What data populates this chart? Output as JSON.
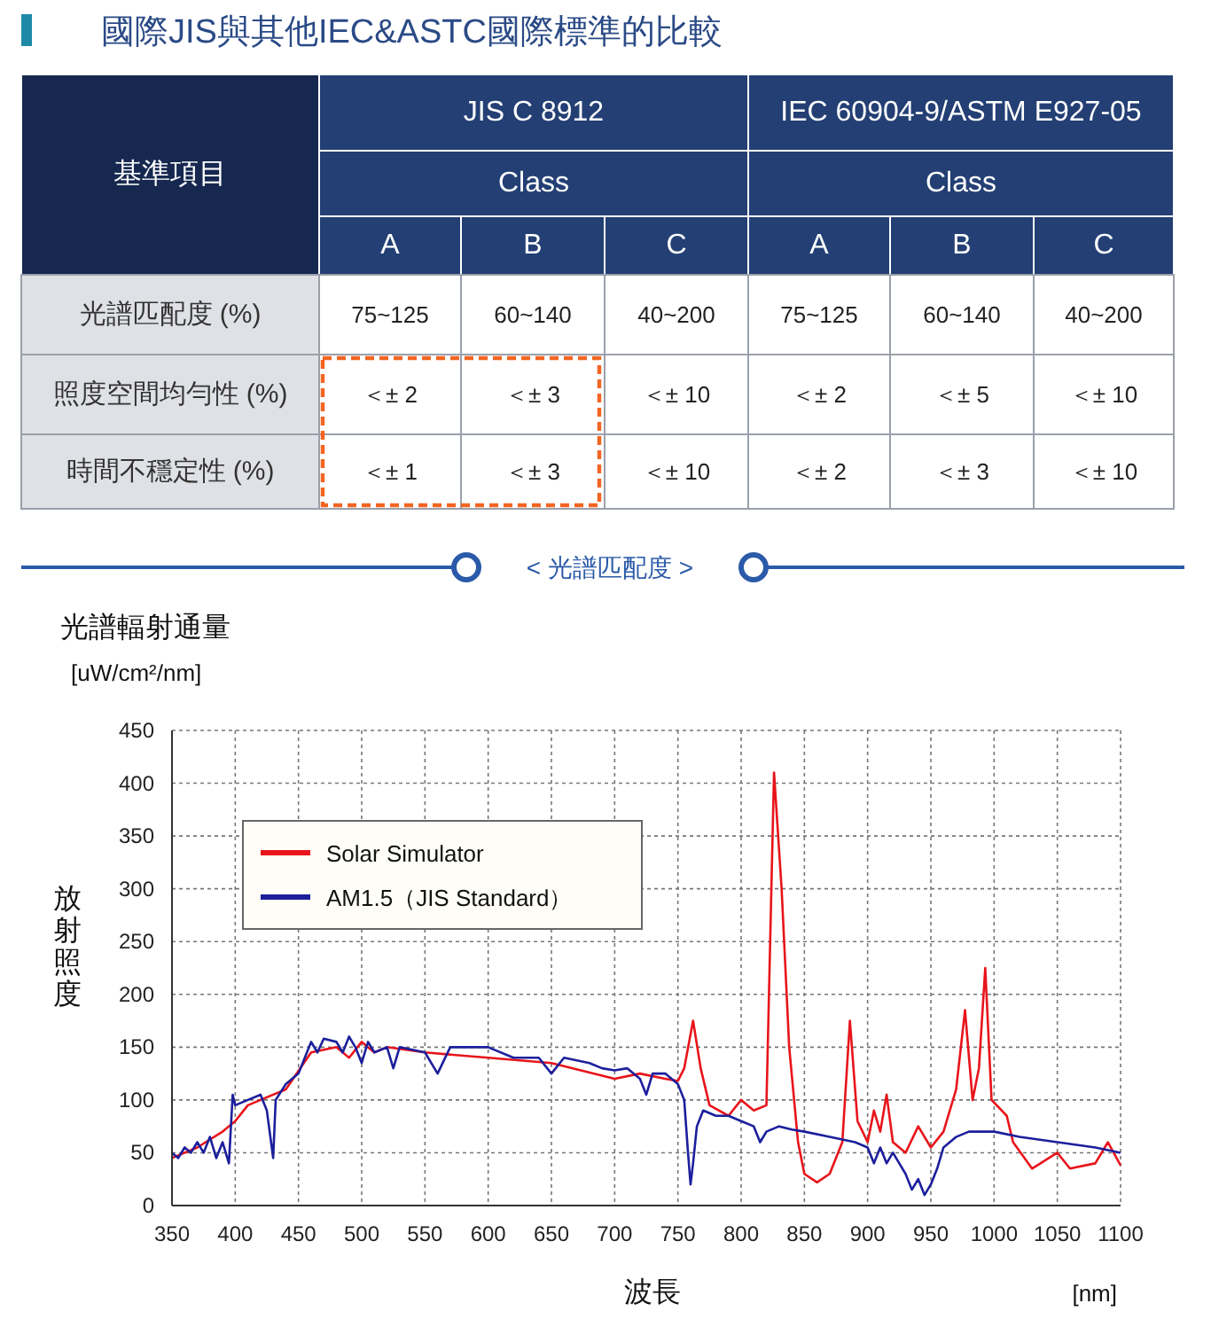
{
  "chart_data": [
    {
      "type": "other",
      "title": "國際JIS與其他IEC&ASTC國際標準的比較",
      "annotations": [
        "基準項目",
        "JIS C 8912",
        "IEC 60904-9/ASTM E927-05",
        "Class",
        "Class",
        "A",
        "B",
        "C",
        "A",
        "B",
        "C",
        "光譜匹配度 (%)",
        "75~125",
        "60~140",
        "40~200",
        "75~125",
        "60~140",
        "40~200",
        "照度空間均勻性 (%)",
        "＜± 2",
        "＜± 3",
        "＜± 10",
        "＜± 2",
        "＜± 5",
        "＜± 10",
        "時間不穩定性 (%)",
        "＜± 1",
        "＜± 3",
        "＜± 10",
        "＜± 2",
        "＜± 3",
        "＜± 10"
      ]
    },
    {
      "type": "line",
      "title": "< 光譜匹配度 >",
      "ylabel": "光譜輻射通量",
      "xlabel": "波長",
      "annotations": [
        "[uW/cm²/nm]",
        "放射照度",
        "[nm]"
      ],
      "xlim": [
        350,
        1100
      ],
      "xticks": [
        350,
        400,
        450,
        500,
        550,
        600,
        650,
        700,
        750,
        800,
        850,
        900,
        950,
        1000,
        1050,
        1100
      ],
      "ylim": [
        0,
        450
      ],
      "yticks": [
        0,
        50,
        100,
        150,
        200,
        250,
        300,
        350,
        400,
        450
      ],
      "grid": true,
      "legend": "top left",
      "series": [
        {
          "name": "Solar Simulator",
          "color": "#e8141b",
          "x": [
            350,
            370,
            390,
            400,
            410,
            420,
            440,
            460,
            480,
            490,
            500,
            510,
            520,
            550,
            600,
            650,
            700,
            720,
            740,
            750,
            755,
            762,
            768,
            775,
            790,
            800,
            810,
            820,
            826,
            832,
            838,
            845,
            850,
            860,
            870,
            880,
            886,
            892,
            900,
            905,
            910,
            915,
            920,
            930,
            940,
            950,
            960,
            970,
            977,
            983,
            988,
            993,
            998,
            1010,
            1015,
            1030,
            1050,
            1060,
            1080,
            1090,
            1100
          ],
          "values": [
            45,
            55,
            70,
            80,
            95,
            100,
            110,
            145,
            150,
            140,
            155,
            145,
            150,
            145,
            140,
            135,
            120,
            125,
            120,
            118,
            130,
            175,
            130,
            95,
            85,
            100,
            90,
            95,
            410,
            300,
            150,
            60,
            30,
            22,
            30,
            60,
            175,
            80,
            60,
            90,
            70,
            105,
            60,
            50,
            75,
            55,
            70,
            110,
            185,
            100,
            130,
            225,
            100,
            85,
            60,
            35,
            50,
            35,
            40,
            60,
            38
          ]
        },
        {
          "name": "AM1.5（JIS Standard）",
          "color": "#1c1f9c",
          "x": [
            350,
            355,
            360,
            365,
            370,
            375,
            380,
            385,
            390,
            395,
            398,
            400,
            410,
            420,
            425,
            430,
            432,
            440,
            450,
            455,
            460,
            465,
            470,
            480,
            485,
            490,
            495,
            500,
            505,
            510,
            520,
            525,
            530,
            550,
            560,
            570,
            600,
            620,
            640,
            650,
            660,
            680,
            690,
            700,
            710,
            720,
            725,
            730,
            740,
            750,
            755,
            758,
            760,
            762,
            765,
            770,
            780,
            790,
            800,
            810,
            815,
            820,
            830,
            840,
            850,
            870,
            890,
            900,
            905,
            910,
            915,
            920,
            930,
            935,
            940,
            945,
            950,
            955,
            960,
            970,
            980,
            1000,
            1020,
            1050,
            1080,
            1100
          ],
          "values": [
            50,
            45,
            55,
            50,
            60,
            50,
            65,
            45,
            60,
            40,
            105,
            95,
            100,
            105,
            90,
            45,
            100,
            115,
            125,
            140,
            155,
            145,
            158,
            155,
            145,
            160,
            150,
            135,
            155,
            145,
            150,
            130,
            150,
            145,
            125,
            150,
            150,
            140,
            140,
            125,
            140,
            135,
            130,
            128,
            130,
            120,
            105,
            125,
            125,
            115,
            100,
            50,
            20,
            40,
            75,
            90,
            85,
            85,
            80,
            75,
            60,
            70,
            75,
            72,
            70,
            65,
            60,
            55,
            40,
            55,
            40,
            50,
            30,
            15,
            25,
            10,
            20,
            35,
            55,
            65,
            70,
            70,
            65,
            60,
            55,
            50
          ]
        }
      ]
    }
  ]
}
